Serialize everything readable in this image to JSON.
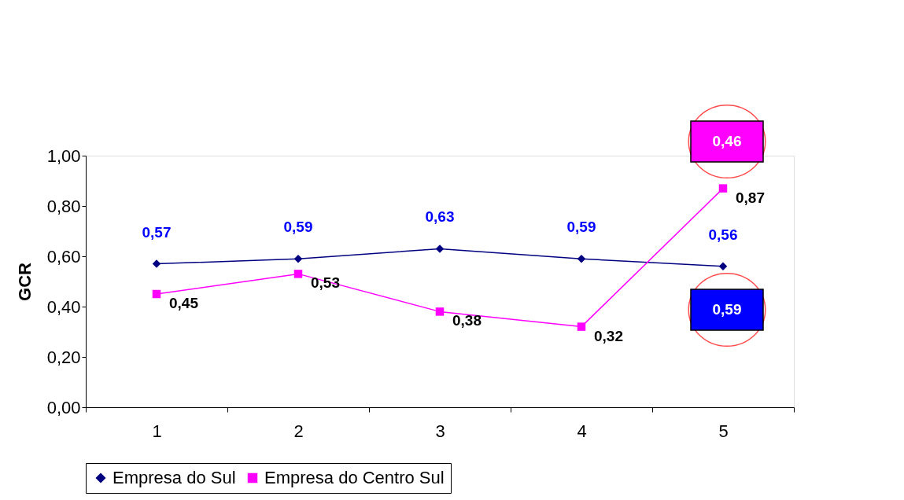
{
  "chart_data": {
    "type": "line",
    "ylabel": "GCR",
    "categories": [
      "1",
      "2",
      "3",
      "4",
      "5"
    ],
    "series": [
      {
        "name": "Empresa do Sul",
        "color": "#000080",
        "marker": "diamond",
        "values": [
          0.57,
          0.59,
          0.63,
          0.59,
          0.56
        ],
        "value_labels": [
          "0,57",
          "0,59",
          "0,63",
          "0,59",
          "0,56"
        ]
      },
      {
        "name": "Empresa do Centro Sul",
        "color": "#ff00ff",
        "marker": "square",
        "values": [
          0.45,
          0.53,
          0.38,
          0.32,
          0.87
        ],
        "value_labels": [
          "0,45",
          "0,53",
          "0,38",
          "0,32",
          "0,87"
        ]
      }
    ],
    "ylim": [
      0,
      1
    ],
    "yticks": [
      {
        "value": 0,
        "label": "0,00"
      },
      {
        "value": 0.2,
        "label": "0,20"
      },
      {
        "value": 0.4,
        "label": "0,40"
      },
      {
        "value": 0.6,
        "label": "0,60"
      },
      {
        "value": 0.8,
        "label": "0,80"
      },
      {
        "value": 1,
        "label": "1,00"
      }
    ],
    "annotations": [
      "0,46",
      "0,59"
    ],
    "grid": false,
    "legend": "bottom",
    "line_style": "solid"
  }
}
